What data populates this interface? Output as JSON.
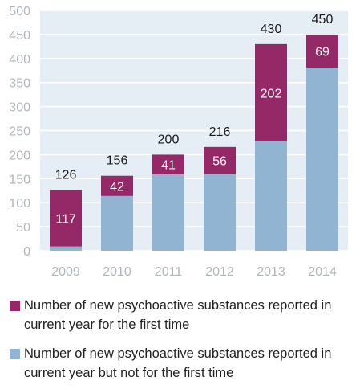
{
  "chart_data": {
    "type": "bar",
    "stacked": true,
    "categories": [
      "2009",
      "2010",
      "2011",
      "2012",
      "2013",
      "2014"
    ],
    "series": [
      {
        "name": "Number of new psychoactive substances reported in current year but not for the first time",
        "values": [
          9,
          114,
          159,
          160,
          228,
          381
        ],
        "color": "#91b4d2"
      },
      {
        "name": "Number of new psychoactive substances reported in current year for the first time",
        "values": [
          117,
          42,
          41,
          56,
          202,
          69
        ],
        "color": "#952866"
      }
    ],
    "totals": [
      126,
      156,
      200,
      216,
      430,
      450
    ],
    "y_ticks": [
      "0",
      "50",
      "100",
      "150",
      "200",
      "250",
      "300",
      "350",
      "400",
      "450",
      "500"
    ],
    "ylim": [
      0,
      500
    ],
    "grid": true,
    "legend_position": "bottom",
    "plot_background": "#e6eef5"
  },
  "legend": {
    "items": [
      {
        "label": "Number of new psychoactive substances reported in current year for the first time",
        "color": "#952866"
      },
      {
        "label": "Number of new psychoactive substances reported in current year but not for the first time",
        "color": "#91b4d2"
      }
    ]
  }
}
